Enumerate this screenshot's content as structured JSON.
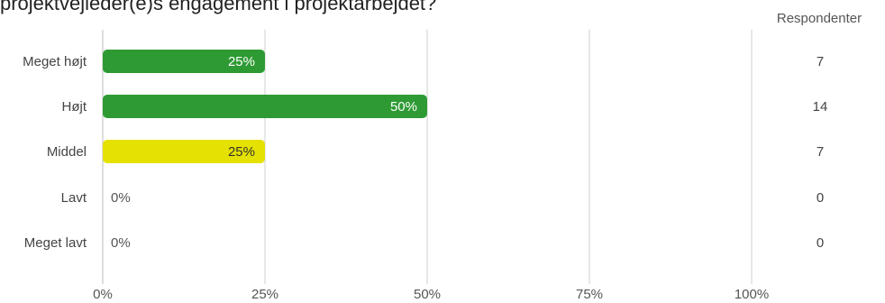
{
  "chart_data": {
    "type": "bar",
    "orientation": "horizontal",
    "title": "projektvejleder(e)s engagement i projektarbejdet?",
    "categories": [
      "Meget højt",
      "Højt",
      "Middel",
      "Lavt",
      "Meget lavt"
    ],
    "values": [
      25,
      50,
      25,
      0,
      0
    ],
    "value_labels": [
      "25%",
      "50%",
      "25%",
      "0%",
      "0%"
    ],
    "respondents_header": "Respondenter",
    "respondents": [
      "7",
      "14",
      "7",
      "0",
      "0"
    ],
    "x_ticks": [
      "0%",
      "25%",
      "50%",
      "75%",
      "100%"
    ],
    "xlim": [
      0,
      100
    ],
    "grid": true,
    "bar_colors": [
      "#2e9a34",
      "#2e9a34",
      "#e5e100",
      "#2e9a34",
      "#2e9a34"
    ],
    "label_colors": [
      "#ffffff",
      "#ffffff",
      "#333333",
      "#555555",
      "#555555"
    ]
  }
}
